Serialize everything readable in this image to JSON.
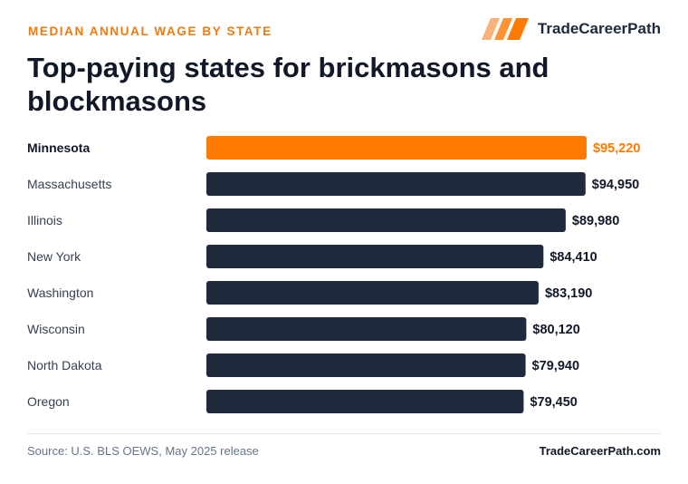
{
  "header": {
    "eyebrow": "MEDIAN ANNUAL WAGE BY STATE",
    "brand_name": "TradeCareerPath",
    "brand_icon": "stripes-logo-icon",
    "title": "Top-paying states for brickmasons and blockmasons"
  },
  "footer": {
    "source": "Source: U.S. BLS OEWS, May 2025 release",
    "site": "TradeCareerPath.com"
  },
  "colors": {
    "accent": "#ff7a00",
    "bar": "#1f2a3d",
    "eyebrow": "#f07a10"
  },
  "chart_data": {
    "type": "bar",
    "orientation": "horizontal",
    "categories": [
      "Minnesota",
      "Massachusetts",
      "Illinois",
      "New York",
      "Washington",
      "Wisconsin",
      "North Dakota",
      "Oregon"
    ],
    "values": [
      95220,
      94950,
      89980,
      84410,
      83190,
      80120,
      79940,
      79450
    ],
    "value_labels": [
      "$95,220",
      "$94,950",
      "$89,980",
      "$84,410",
      "$83,190",
      "$80,120",
      "$79,940",
      "$79,450"
    ],
    "highlight": "Minnesota",
    "title": "Top-paying states for brickmasons and blockmasons",
    "xlabel": "",
    "ylabel": "",
    "grid": false
  }
}
